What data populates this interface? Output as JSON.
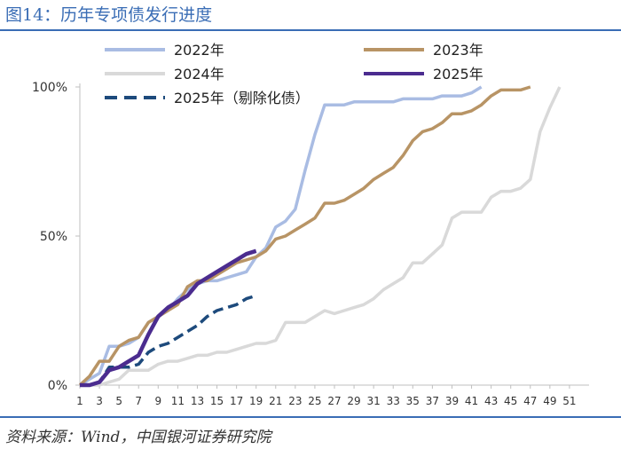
{
  "header": {
    "title": "图14：历年专项债发行进度"
  },
  "footer": {
    "source": "资料来源：Wind，中国银河证券研究院"
  },
  "chart_data": {
    "type": "line",
    "title": "历年专项债发行进度",
    "xlabel": "",
    "ylabel": "",
    "xlim": [
      1,
      53
    ],
    "ylim": [
      0,
      1
    ],
    "x_ticks": [
      1,
      3,
      5,
      7,
      9,
      11,
      13,
      15,
      17,
      19,
      21,
      23,
      25,
      27,
      29,
      31,
      33,
      35,
      37,
      39,
      41,
      43,
      45,
      47,
      49,
      51
    ],
    "y_ticks": [
      0,
      0.5,
      1
    ],
    "y_tick_labels": [
      "0%",
      "50%",
      "100%"
    ],
    "legend_position": "top",
    "series": [
      {
        "name": "2022年",
        "color": "#a9bce3",
        "dash": "solid",
        "x": [
          1,
          2,
          3,
          4,
          5,
          6,
          7,
          8,
          9,
          10,
          11,
          12,
          13,
          14,
          15,
          16,
          17,
          18,
          19,
          20,
          21,
          22,
          23,
          24,
          25,
          26,
          27,
          28,
          29,
          30,
          31,
          32,
          33,
          34,
          35,
          36,
          37,
          38,
          39,
          40,
          41,
          42
        ],
        "values": [
          0,
          0.02,
          0.04,
          0.13,
          0.13,
          0.14,
          0.16,
          0.21,
          0.23,
          0.25,
          0.29,
          0.32,
          0.34,
          0.35,
          0.35,
          0.36,
          0.37,
          0.38,
          0.43,
          0.46,
          0.53,
          0.55,
          0.59,
          0.72,
          0.84,
          0.94,
          0.94,
          0.94,
          0.95,
          0.95,
          0.95,
          0.95,
          0.95,
          0.96,
          0.96,
          0.96,
          0.96,
          0.97,
          0.97,
          0.97,
          0.98,
          1.0
        ]
      },
      {
        "name": "2023年",
        "color": "#b89465",
        "dash": "solid",
        "x": [
          1,
          2,
          3,
          4,
          5,
          6,
          7,
          8,
          9,
          10,
          11,
          12,
          13,
          14,
          15,
          16,
          17,
          18,
          19,
          20,
          21,
          22,
          23,
          24,
          25,
          26,
          27,
          28,
          29,
          30,
          31,
          32,
          33,
          34,
          35,
          36,
          37,
          38,
          39,
          40,
          41,
          42,
          43,
          44,
          45,
          46,
          47
        ],
        "values": [
          0,
          0.03,
          0.08,
          0.08,
          0.13,
          0.15,
          0.16,
          0.21,
          0.23,
          0.25,
          0.27,
          0.33,
          0.35,
          0.35,
          0.37,
          0.39,
          0.41,
          0.42,
          0.43,
          0.45,
          0.49,
          0.5,
          0.52,
          0.54,
          0.56,
          0.61,
          0.61,
          0.62,
          0.64,
          0.66,
          0.69,
          0.71,
          0.73,
          0.77,
          0.82,
          0.85,
          0.86,
          0.88,
          0.91,
          0.91,
          0.92,
          0.94,
          0.97,
          0.99,
          0.99,
          0.99,
          1.0
        ]
      },
      {
        "name": "2024年",
        "color": "#d9d9d9",
        "dash": "solid",
        "x": [
          1,
          2,
          3,
          4,
          5,
          6,
          7,
          8,
          9,
          10,
          11,
          12,
          13,
          14,
          15,
          16,
          17,
          18,
          19,
          20,
          21,
          22,
          23,
          24,
          25,
          26,
          27,
          28,
          29,
          30,
          31,
          32,
          33,
          34,
          35,
          36,
          37,
          38,
          39,
          40,
          41,
          42,
          43,
          44,
          45,
          46,
          47,
          48,
          49,
          50
        ],
        "values": [
          0,
          0,
          0,
          0.01,
          0.02,
          0.05,
          0.05,
          0.05,
          0.07,
          0.08,
          0.08,
          0.09,
          0.1,
          0.1,
          0.11,
          0.11,
          0.12,
          0.13,
          0.14,
          0.14,
          0.15,
          0.21,
          0.21,
          0.21,
          0.23,
          0.25,
          0.24,
          0.25,
          0.26,
          0.27,
          0.29,
          0.32,
          0.34,
          0.36,
          0.41,
          0.41,
          0.44,
          0.47,
          0.56,
          0.58,
          0.58,
          0.58,
          0.63,
          0.65,
          0.65,
          0.66,
          0.69,
          0.85,
          0.93,
          1.0
        ]
      },
      {
        "name": "2025年",
        "color": "#4b2c8f",
        "dash": "solid",
        "x": [
          1,
          2,
          3,
          4,
          5,
          6,
          7,
          8,
          9,
          10,
          11,
          12,
          13,
          14,
          15,
          16,
          17,
          18,
          19
        ],
        "values": [
          0,
          0,
          0.01,
          0.05,
          0.06,
          0.08,
          0.1,
          0.17,
          0.23,
          0.26,
          0.28,
          0.3,
          0.34,
          0.36,
          0.38,
          0.4,
          0.42,
          0.44,
          0.45
        ]
      },
      {
        "name": "2025年（剔除化债）",
        "color": "#1d4a7c",
        "dash": "dashed",
        "x": [
          1,
          2,
          3,
          4,
          5,
          6,
          7,
          8,
          9,
          10,
          11,
          12,
          13,
          14,
          15,
          16,
          17,
          18,
          19
        ],
        "values": [
          0,
          0,
          0.01,
          0.06,
          0.06,
          0.06,
          0.07,
          0.11,
          0.13,
          0.14,
          0.16,
          0.18,
          0.2,
          0.23,
          0.25,
          0.26,
          0.27,
          0.29,
          0.3
        ]
      }
    ]
  }
}
